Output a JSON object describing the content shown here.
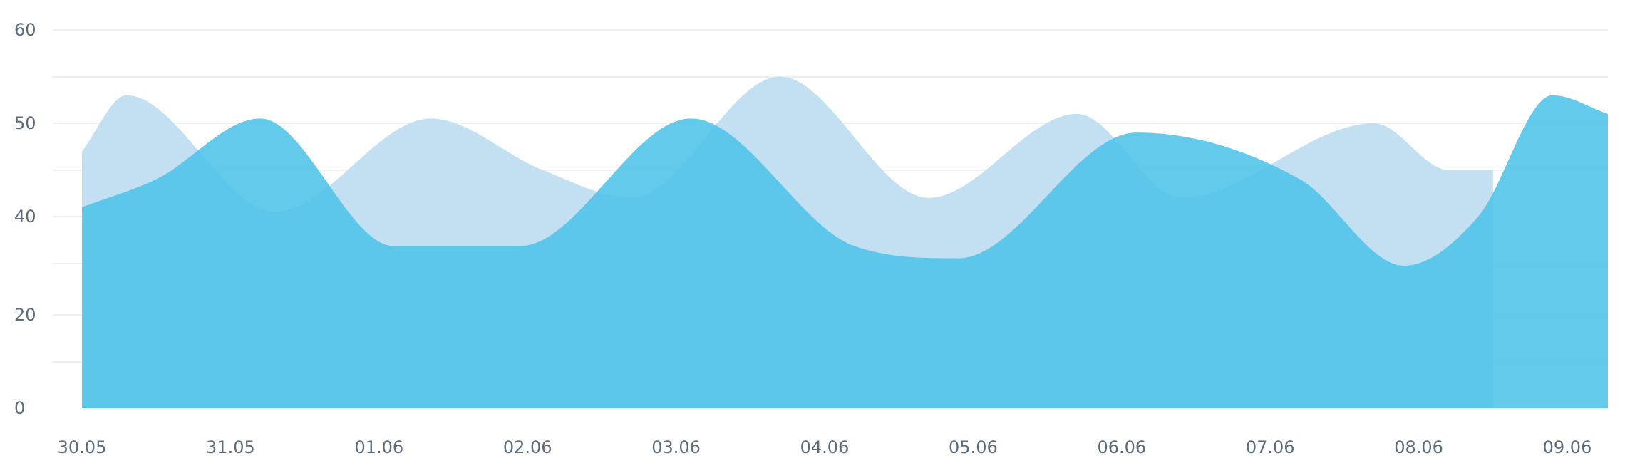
{
  "chart_data": {
    "type": "area",
    "categories": [
      "30.05",
      "31.05",
      "01.06",
      "02.06",
      "03.06",
      "04.06",
      "05.06",
      "06.06",
      "07.06",
      "08.06",
      "09.06"
    ],
    "y_tick_labels": [
      "0",
      "20",
      "40",
      "50",
      "60"
    ],
    "series": [
      {
        "color": "#c3e0f2",
        "points": [
          [
            0,
            47
          ],
          [
            0.3,
            53
          ],
          [
            1.3,
            40.5
          ],
          [
            2.35,
            50.5
          ],
          [
            3.1,
            45
          ],
          [
            3.7,
            42
          ],
          [
            4.7,
            55
          ],
          [
            5.7,
            42
          ],
          [
            6.7,
            51
          ],
          [
            7.4,
            42
          ],
          [
            8.7,
            50
          ],
          [
            9.2,
            45
          ],
          [
            9.5,
            45
          ]
        ]
      },
      {
        "color": "#4dc3e8",
        "points": [
          [
            0,
            41
          ],
          [
            0.5,
            44
          ],
          [
            1.2,
            50.5
          ],
          [
            2.1,
            34
          ],
          [
            2.95,
            34
          ],
          [
            4.1,
            50.5
          ],
          [
            5.2,
            34
          ],
          [
            5.9,
            31.5
          ],
          [
            7.1,
            49
          ],
          [
            8.2,
            44
          ],
          [
            8.9,
            30
          ],
          [
            9.4,
            40
          ],
          [
            9.9,
            53
          ],
          [
            10.4,
            51
          ]
        ]
      }
    ]
  }
}
